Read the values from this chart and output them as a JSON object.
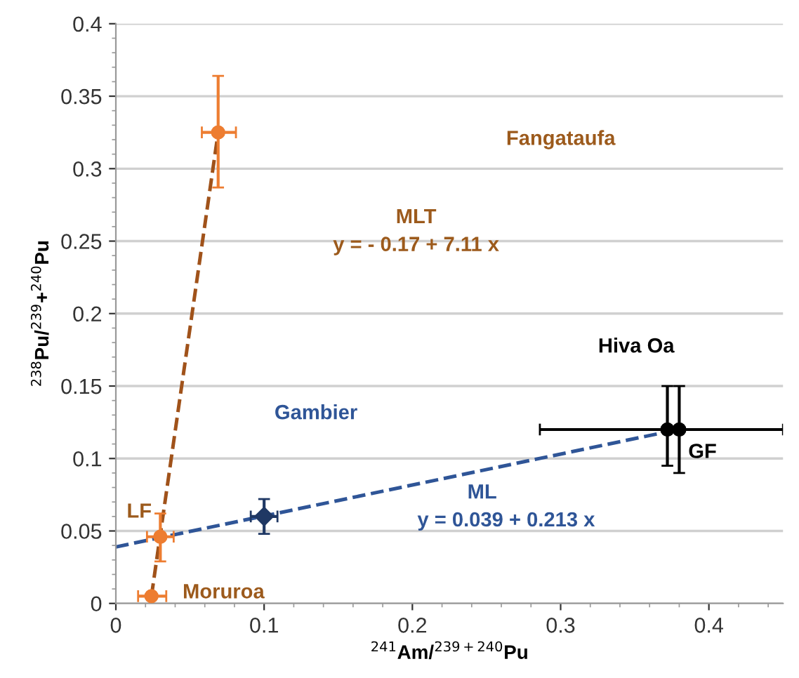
{
  "chart_data": {
    "type": "scatter",
    "xlabel": "$^{241}$Am/$^{239+240}$Pu",
    "ylabel": "$^{238}$Pu/$^{239}$+$^{240}$Pu",
    "xlim": [
      0,
      0.45
    ],
    "xticks": [
      0,
      0.1,
      0.2,
      0.3,
      0.4
    ],
    "ylim": [
      0,
      0.4
    ],
    "yticks": [
      0,
      0.05,
      0.1,
      0.15,
      0.2,
      0.25,
      0.3,
      0.35,
      0.4
    ],
    "grid": "y",
    "legend": false,
    "series": [
      {
        "type": "line",
        "color": "#a0521a",
        "line_style": "dashed",
        "marker": "none",
        "x": [
          0.024,
          0.069
        ],
        "values": [
          0.005,
          0.325
        ]
      },
      {
        "type": "line",
        "color": "#2f5597",
        "line_style": "dashed",
        "marker": "none",
        "x": [
          0,
          0.37
        ],
        "values": [
          0.039,
          0.118
        ]
      },
      {
        "color": "#ed7d31",
        "marker": "circle",
        "x": [
          0.024,
          0.03,
          0.069
        ],
        "values": [
          0.005,
          0.046,
          0.325
        ],
        "errors": [
          null,
          [
            0.029,
            0.062
          ],
          [
            0.287,
            0.364
          ]
        ],
        "xerrors": [
          [
            0.015,
            0.034
          ],
          [
            0.021,
            0.039
          ],
          [
            0.058,
            0.081
          ]
        ]
      },
      {
        "color": "#1f3864",
        "marker": "diamond",
        "x": [
          0.1
        ],
        "values": [
          0.06
        ],
        "errors": [
          [
            0.048,
            0.072
          ]
        ],
        "xerrors": [
          [
            0.091,
            0.109
          ]
        ]
      },
      {
        "color": "#000000",
        "marker": "circle",
        "x": [
          0.372,
          0.38
        ],
        "values": [
          0.12,
          0.12
        ],
        "errors": [
          [
            0.095,
            0.15
          ],
          [
            0.09,
            0.15
          ]
        ],
        "xerrors": [
          null,
          [
            0.286,
            0.45
          ]
        ]
      }
    ],
    "annotations": [
      "Fangataufa",
      "MLT",
      "y = - 0.17 + 7.11 x",
      "Gambier",
      "LF",
      "Moruroa",
      "Hiva Oa",
      "GF",
      "ML",
      "y = 0.039 + 0.213 x"
    ]
  }
}
